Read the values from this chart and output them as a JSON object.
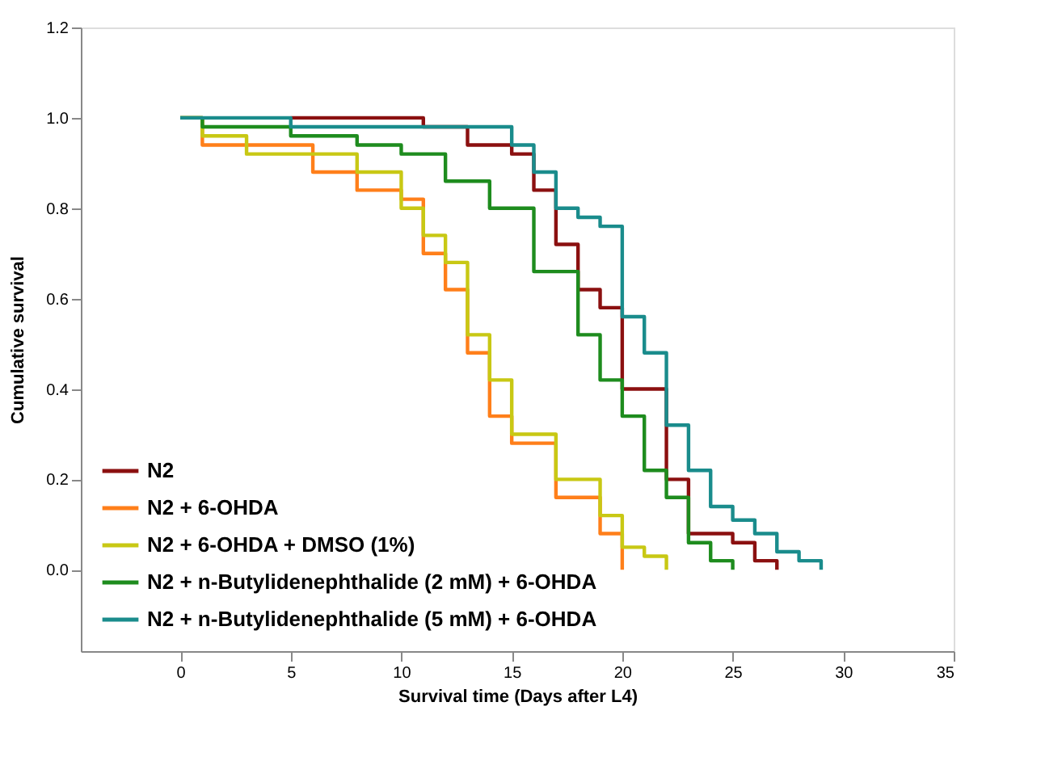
{
  "chart_data": {
    "type": "step",
    "xlabel": "Survival time (Days after L4)",
    "ylabel": "Cumulative survival",
    "xlim": [
      -4.5,
      35
    ],
    "xticks": [
      0,
      5,
      10,
      15,
      20,
      25,
      30,
      35
    ],
    "ylim": [
      -0.18,
      1.2
    ],
    "yticks": [
      {
        "value": 0,
        "label": "0.0"
      },
      0.2,
      0.4,
      0.6,
      0.8,
      {
        "value": 1,
        "label": "1.0"
      },
      1.2
    ],
    "grid": false,
    "legend": "bottom left",
    "line_style": "solid",
    "marker": "none",
    "series": [
      {
        "name": "N2",
        "color": "#8b1010",
        "x": [
          5,
          11,
          13,
          15,
          16,
          17,
          18,
          19,
          20,
          22,
          23,
          25,
          26,
          27
        ],
        "values": [
          1.0,
          0.98,
          0.94,
          0.92,
          0.84,
          0.72,
          0.62,
          0.58,
          0.4,
          0.2,
          0.08,
          0.06,
          0.02,
          0.0
        ]
      },
      {
        "name": "N2 + 6-OHDA",
        "color": "#ff7f1a",
        "x": [
          0,
          1,
          6,
          8,
          10,
          11,
          12,
          13,
          14,
          15,
          17,
          19,
          20
        ],
        "values": [
          1.0,
          0.94,
          0.88,
          0.84,
          0.82,
          0.7,
          0.62,
          0.48,
          0.34,
          0.28,
          0.16,
          0.08,
          0.0
        ]
      },
      {
        "name": "N2 + 6-OHDA + DMSO (1%)",
        "color": "#c8c814",
        "x": [
          0,
          1,
          3,
          8,
          10,
          11,
          12,
          13,
          14,
          15,
          17,
          19,
          20,
          21,
          22
        ],
        "values": [
          1.0,
          0.96,
          0.92,
          0.88,
          0.8,
          0.74,
          0.68,
          0.52,
          0.42,
          0.3,
          0.2,
          0.12,
          0.05,
          0.03,
          0.0
        ]
      },
      {
        "name": "N2 + n-Butylidenephthalide (2 mM) + 6-OHDA",
        "color": "#1e8c1e",
        "x": [
          0,
          1,
          5,
          8,
          10,
          12,
          14,
          16,
          18,
          19,
          20,
          21,
          22,
          23,
          24,
          25
        ],
        "values": [
          1.0,
          0.98,
          0.96,
          0.94,
          0.92,
          0.86,
          0.8,
          0.66,
          0.52,
          0.42,
          0.34,
          0.22,
          0.16,
          0.06,
          0.02,
          0.0
        ]
      },
      {
        "name": "N2 + n-Butylidenephthalide (5 mM) + 6-OHDA",
        "color": "#1a8c8c",
        "x": [
          0,
          5,
          15,
          16,
          17,
          18,
          19,
          20,
          21,
          22,
          23,
          24,
          25,
          26,
          27,
          28,
          29
        ],
        "values": [
          1.0,
          0.98,
          0.94,
          0.88,
          0.8,
          0.78,
          0.76,
          0.56,
          0.48,
          0.32,
          0.22,
          0.14,
          0.11,
          0.08,
          0.04,
          0.02,
          0.0
        ]
      }
    ]
  }
}
